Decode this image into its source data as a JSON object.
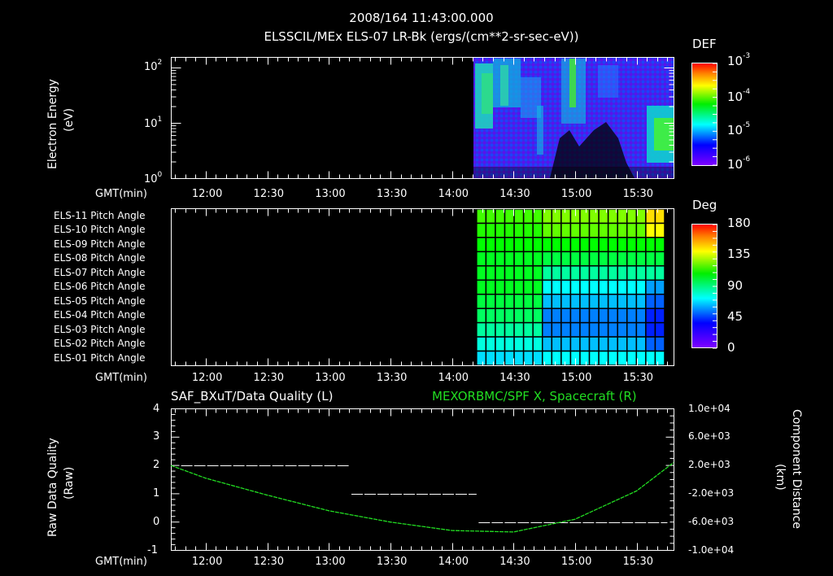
{
  "header": {
    "time": "2008/164 11:43:00.000",
    "subtitle": "ELSSCIL/MEx ELS-07 LR-Bk  (ergs/(cm**2-sr-sec-eV))"
  },
  "colors": {
    "background": "#000000",
    "axis": "#ffffff",
    "spacecraft_line": "#22dd22",
    "quality_line": "#ffffff"
  },
  "panel1": {
    "ylabel": "Electron Energy",
    "yunit": "(eV)",
    "yticks": [
      "10",
      "10",
      "10"
    ],
    "yexp": [
      "2",
      "1",
      "0"
    ],
    "xlabel": "GMT(min)",
    "colorbar_title": "DEF",
    "colorbar_ticks": [
      "10",
      "10",
      "10",
      "10"
    ],
    "colorbar_exp": [
      "-3",
      "-4",
      "-5",
      "-6"
    ]
  },
  "panel2": {
    "rows": [
      "ELS-11 Pitch Angle",
      "ELS-10 Pitch Angle",
      "ELS-09 Pitch Angle",
      "ELS-08 Pitch Angle",
      "ELS-07 Pitch Angle",
      "ELS-06 Pitch Angle",
      "ELS-05 Pitch Angle",
      "ELS-04 Pitch Angle",
      "ELS-03 Pitch Angle",
      "ELS-02 Pitch Angle",
      "ELS-01 Pitch Angle"
    ],
    "xlabel": "GMT(min)",
    "colorbar_title": "Deg",
    "colorbar_ticks": [
      "180",
      "135",
      "90",
      "45",
      "0"
    ]
  },
  "panel3": {
    "left_title": "SAF_BXuT/Data Quality (L)",
    "right_title": "MEXORBMC/SPF X, Spacecraft (R)",
    "ylabel": "Raw Data Quality",
    "yunit": "(Raw)",
    "yticks": [
      "4",
      "3",
      "2",
      "1",
      "0",
      "-1"
    ],
    "right_label": "Component Distance",
    "right_unit": "(km)",
    "right_ticks": [
      "1.0e+04",
      "6.0e+03",
      "2.0e+03",
      "-2.0e+03",
      "-6.0e+03",
      "-1.0e+04"
    ],
    "xlabel": "GMT(min)"
  },
  "xticks": [
    "12:00",
    "12:30",
    "13:00",
    "13:30",
    "14:00",
    "14:30",
    "15:00",
    "15:30"
  ],
  "chart_data": [
    {
      "type": "heatmap",
      "title": "ELSSCIL/MEx ELS-07 LR-Bk (ergs/(cm**2-sr-sec-eV))",
      "xlabel": "GMT(min)",
      "ylabel": "Electron Energy (eV)",
      "yscale": "log",
      "ylim": [
        1,
        200
      ],
      "x_range": [
        "11:43",
        "15:48"
      ],
      "data_start": "14:12",
      "colorbar": {
        "label": "DEF",
        "scale": "log",
        "range": [
          1e-06,
          0.001
        ]
      },
      "xticks": [
        "12:00",
        "12:30",
        "13:00",
        "13:30",
        "14:00",
        "14:30",
        "15:00",
        "15:30"
      ]
    },
    {
      "type": "heatmap",
      "title": "ELS Pitch Angle",
      "xlabel": "GMT(min)",
      "categories": [
        "ELS-11",
        "ELS-10",
        "ELS-09",
        "ELS-08",
        "ELS-07",
        "ELS-06",
        "ELS-05",
        "ELS-04",
        "ELS-03",
        "ELS-02",
        "ELS-01"
      ],
      "data_start": "14:12",
      "colorbar": {
        "label": "Deg",
        "range": [
          0,
          180
        ],
        "ticks": [
          0,
          45,
          90,
          135,
          180
        ]
      },
      "approx_values_before_1440": [
        110,
        105,
        100,
        95,
        95,
        95,
        90,
        85,
        75,
        65,
        55
      ],
      "approx_values_after_1440": [
        120,
        115,
        100,
        90,
        75,
        60,
        50,
        40,
        40,
        50,
        60
      ]
    },
    {
      "type": "line",
      "title": "SAF_BXuT/Data Quality (L) ; MEXORBMC/SPF X, Spacecraft (R)",
      "xlabel": "GMT(min)",
      "ylabel": "Raw Data Quality (Raw)",
      "ylim": [
        -1,
        4
      ],
      "y2label": "Component Distance (km)",
      "y2lim": [
        -10000,
        10000
      ],
      "series": [
        {
          "name": "Data Quality (L)",
          "axis": "left",
          "x": [
            "11:48",
            "13:10",
            "13:11",
            "14:12",
            "14:13",
            "15:45"
          ],
          "values": [
            2,
            2,
            1,
            1,
            0,
            0
          ]
        },
        {
          "name": "SPF X, Spacecraft (R)",
          "axis": "right",
          "x": [
            "11:43",
            "12:00",
            "12:30",
            "13:00",
            "13:30",
            "14:00",
            "14:30",
            "15:00",
            "15:30",
            "15:48"
          ],
          "values": [
            2000,
            200,
            -2200,
            -4400,
            -6000,
            -7200,
            -7400,
            -5600,
            -1600,
            2400
          ]
        }
      ]
    }
  ]
}
